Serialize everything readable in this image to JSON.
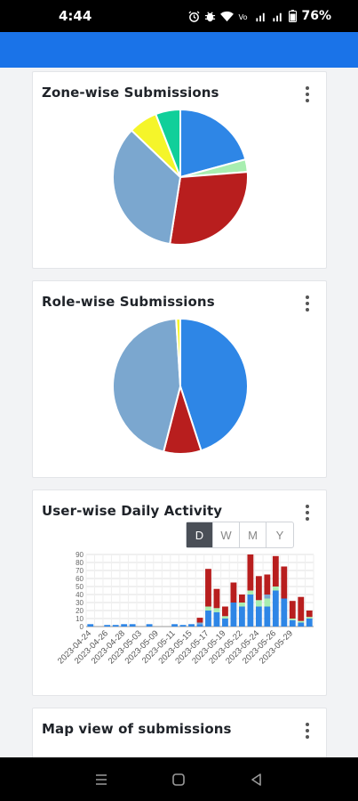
{
  "status": {
    "time": "4:44",
    "battery": "76%"
  },
  "cards": {
    "zone": {
      "title": "Zone-wise Submissions",
      "chart_data": {
        "type": "pie",
        "values": [
          21,
          3,
          29,
          35,
          7,
          6
        ],
        "colors": [
          "#2e86e6",
          "#a8eeb0",
          "#b81e1e",
          "#7ba7cf",
          "#f5f52a",
          "#10cf9a"
        ]
      }
    },
    "role": {
      "title": "Role-wise Submissions",
      "chart_data": {
        "type": "pie",
        "values": [
          45,
          9,
          45,
          1
        ],
        "colors": [
          "#2e86e6",
          "#b81e1e",
          "#7ba7cf",
          "#f5f52a"
        ]
      }
    },
    "user": {
      "title": "User-wise Daily Activity",
      "range_tabs": [
        "D",
        "W",
        "M",
        "Y"
      ],
      "active_tab": "D",
      "chart_data": {
        "type": "bar",
        "stacked": true,
        "y_ticks": [
          "0",
          "10",
          "20",
          "30",
          "40",
          "50",
          "60",
          "70",
          "80",
          "90"
        ],
        "ylim": [
          0,
          90
        ],
        "x_tick_labels": [
          "2023-04-24",
          "2023-04-26",
          "2023-04-28",
          "2023-05-03",
          "2023-05-09",
          "2023-05-11",
          "2023-05-15",
          "2023-05-17",
          "2023-05-19",
          "2023-05-22",
          "2023-05-24",
          "2023-05-26",
          "2023-05-29"
        ],
        "series_colors": [
          "#2e86e6",
          "#a8eeb0",
          "#7ba7cf",
          "#b81e1e"
        ],
        "stacks": [
          [
            3,
            0,
            0,
            0
          ],
          [
            0,
            0,
            0,
            0
          ],
          [
            2,
            0,
            0,
            0
          ],
          [
            2,
            0,
            0,
            0
          ],
          [
            3,
            0,
            0,
            0
          ],
          [
            3,
            0,
            0,
            0
          ],
          [
            0,
            0,
            0,
            0
          ],
          [
            3,
            0,
            0,
            0
          ],
          [
            0,
            0,
            0,
            0
          ],
          [
            0,
            0,
            0,
            0
          ],
          [
            3,
            0,
            0,
            0
          ],
          [
            2,
            0,
            0,
            0
          ],
          [
            3,
            0,
            0,
            0
          ],
          [
            3,
            0,
            2,
            6
          ],
          [
            20,
            5,
            0,
            47
          ],
          [
            18,
            5,
            0,
            24
          ],
          [
            10,
            3,
            0,
            12
          ],
          [
            30,
            0,
            0,
            25
          ],
          [
            25,
            5,
            0,
            10
          ],
          [
            40,
            5,
            0,
            45
          ],
          [
            25,
            8,
            0,
            30
          ],
          [
            25,
            10,
            5,
            25
          ],
          [
            45,
            5,
            0,
            38
          ],
          [
            35,
            0,
            0,
            40
          ],
          [
            8,
            2,
            0,
            22
          ],
          [
            5,
            2,
            0,
            30
          ],
          [
            10,
            2,
            0,
            8
          ]
        ]
      }
    },
    "map": {
      "title": "Map view of submissions"
    }
  }
}
